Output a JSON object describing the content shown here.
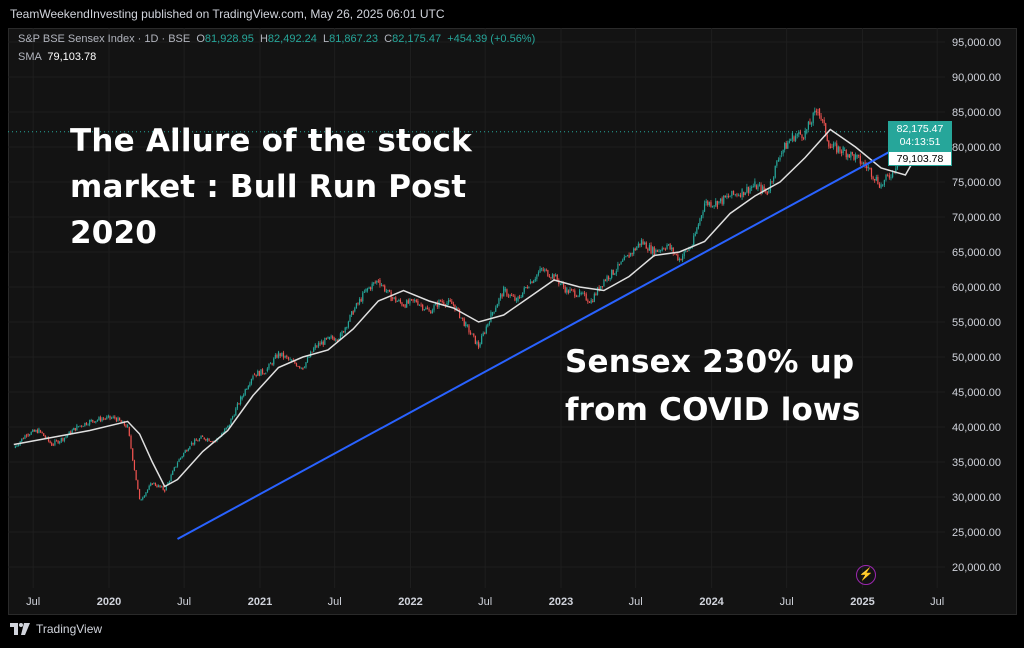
{
  "publisher_line": "TeamWeekendInvesting published on TradingView.com, May 26, 2025 06:01 UTC",
  "legend": {
    "symbol": "S&P BSE Sensex Index · 1D · BSE",
    "open_label": "O",
    "open": "81,928.95",
    "high_label": "H",
    "high": "82,492.24",
    "low_label": "L",
    "low": "81,867.23",
    "close_label": "C",
    "close": "82,175.47",
    "change": "+454.39 (+0.56%)",
    "sma_label": "SMA",
    "sma_value": "79,103.78"
  },
  "annotations": {
    "headline": "The Allure of the stock market : Bull Run Post 2020",
    "callout": "Sensex 230% up from COVID lows"
  },
  "price_tags": {
    "last_price": "82,175.47",
    "countdown": "04:13:51",
    "sma_price": "79,103.78"
  },
  "footer_brand": "TradingView",
  "colors": {
    "up": "#26a69a",
    "down": "#ef5350",
    "sma": "#e0e0e0",
    "trendline": "#2962ff",
    "background": "#131313",
    "grid": "#1e1e1e"
  },
  "chart_data": {
    "type": "line",
    "title": "S&P BSE Sensex Index · 1D · BSE",
    "y_ticks": [
      "95,000.00",
      "90,000.00",
      "85,000.00",
      "80,000.00",
      "75,000.00",
      "70,000.00",
      "65,000.00",
      "60,000.00",
      "55,000.00",
      "50,000.00",
      "45,000.00",
      "40,000.00",
      "35,000.00",
      "30,000.00",
      "25,000.00",
      "20,000.00"
    ],
    "x_ticks": [
      "Jul",
      "2020",
      "Jul",
      "2021",
      "Jul",
      "2022",
      "Jul",
      "2023",
      "Jul",
      "2024",
      "Jul",
      "2025",
      "Jul"
    ],
    "ylim": [
      17000,
      97000
    ],
    "grid": true,
    "series": [
      {
        "name": "S&P BSE Sensex Index",
        "x": [
          "2019-05",
          "2019-06",
          "2019-07",
          "2019-08",
          "2019-09",
          "2019-10",
          "2019-11",
          "2019-12",
          "2020-01",
          "2020-02",
          "2020-03",
          "2020-04",
          "2020-05",
          "2020-06",
          "2020-07",
          "2020-08",
          "2020-09",
          "2020-10",
          "2020-11",
          "2020-12",
          "2021-01",
          "2021-02",
          "2021-03",
          "2021-04",
          "2021-05",
          "2021-06",
          "2021-07",
          "2021-08",
          "2021-09",
          "2021-10",
          "2021-11",
          "2021-12",
          "2022-01",
          "2022-02",
          "2022-03",
          "2022-04",
          "2022-05",
          "2022-06",
          "2022-07",
          "2022-08",
          "2022-09",
          "2022-10",
          "2022-11",
          "2022-12",
          "2023-01",
          "2023-02",
          "2023-03",
          "2023-04",
          "2023-05",
          "2023-06",
          "2023-07",
          "2023-08",
          "2023-09",
          "2023-10",
          "2023-11",
          "2023-12",
          "2024-01",
          "2024-02",
          "2024-03",
          "2024-04",
          "2024-05",
          "2024-06",
          "2024-07",
          "2024-08",
          "2024-09",
          "2024-10",
          "2024-11",
          "2024-12",
          "2025-01",
          "2025-02",
          "2025-03",
          "2025-04",
          "2025-05"
        ],
        "y": [
          37000,
          39000,
          39500,
          37500,
          38500,
          40000,
          40800,
          41200,
          41300,
          40000,
          29500,
          32000,
          31000,
          35000,
          37500,
          38500,
          38000,
          40000,
          44000,
          47500,
          48000,
          50500,
          49500,
          48500,
          51500,
          52500,
          53000,
          56500,
          59500,
          61000,
          58500,
          57500,
          58000,
          56500,
          58000,
          57500,
          54500,
          51500,
          56000,
          59500,
          58000,
          60500,
          62500,
          61500,
          59500,
          59000,
          58000,
          61000,
          62500,
          64500,
          66500,
          65000,
          66000,
          64000,
          66000,
          72000,
          72000,
          73000,
          73600,
          74500,
          73500,
          79000,
          81500,
          82000,
          85500,
          80000,
          79500,
          78500,
          77000,
          74500,
          76500,
          80000,
          82175
        ]
      },
      {
        "name": "SMA",
        "x": [
          "2019-05",
          "2019-08",
          "2019-11",
          "2020-02",
          "2020-03",
          "2020-04",
          "2020-05",
          "2020-06",
          "2020-08",
          "2020-10",
          "2020-12",
          "2021-02",
          "2021-04",
          "2021-06",
          "2021-08",
          "2021-10",
          "2021-12",
          "2022-02",
          "2022-04",
          "2022-06",
          "2022-08",
          "2022-10",
          "2022-12",
          "2023-02",
          "2023-04",
          "2023-06",
          "2023-08",
          "2023-10",
          "2023-12",
          "2024-02",
          "2024-04",
          "2024-06",
          "2024-08",
          "2024-10",
          "2024-12",
          "2025-02",
          "2025-04",
          "2025-05"
        ],
        "y": [
          37500,
          38500,
          39500,
          40800,
          39000,
          35000,
          31500,
          32500,
          36500,
          39500,
          44500,
          48500,
          50000,
          51000,
          54000,
          58000,
          59500,
          58000,
          57000,
          55000,
          56000,
          58500,
          61000,
          60000,
          59500,
          61500,
          64500,
          65000,
          66500,
          70500,
          73000,
          75000,
          78500,
          82500,
          80000,
          77000,
          76000,
          79103
        ]
      },
      {
        "name": "Trendline",
        "x": [
          "2020-06",
          "2025-06"
        ],
        "y": [
          24000,
          82500
        ]
      }
    ]
  }
}
